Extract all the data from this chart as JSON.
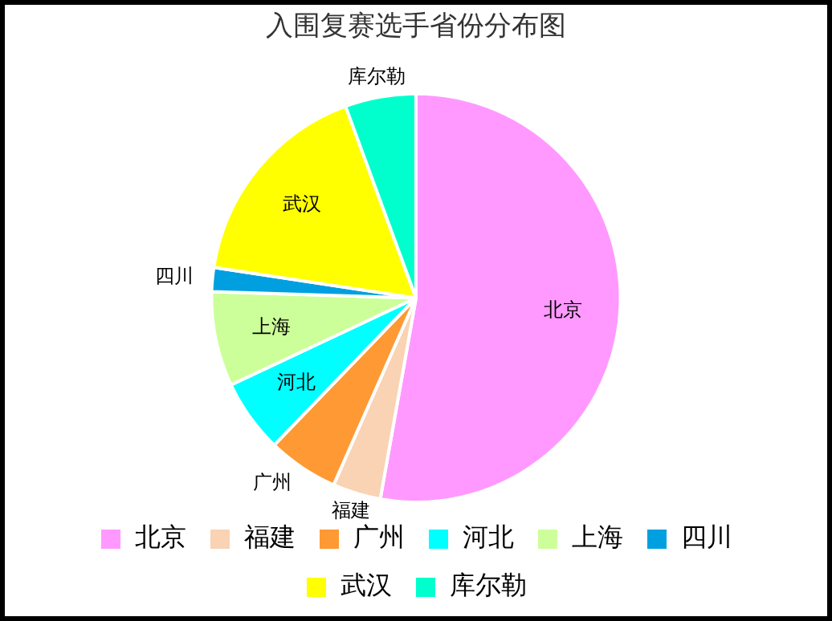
{
  "chart_data": {
    "type": "pie",
    "title": "入围复赛选手省份分布图",
    "categories": [
      "北京",
      "福建",
      "广州",
      "河北",
      "上海",
      "四川",
      "武汉",
      "库尔勒"
    ],
    "values": [
      52.8,
      3.8,
      5.6,
      5.8,
      7.5,
      1.9,
      17.0,
      5.6
    ],
    "colors": [
      "#ff99ff",
      "#f9d3b3",
      "#ff9933",
      "#00ffff",
      "#ccff99",
      "#00a0e0",
      "#ffff00",
      "#00ffcc"
    ],
    "legend": "bottom"
  }
}
